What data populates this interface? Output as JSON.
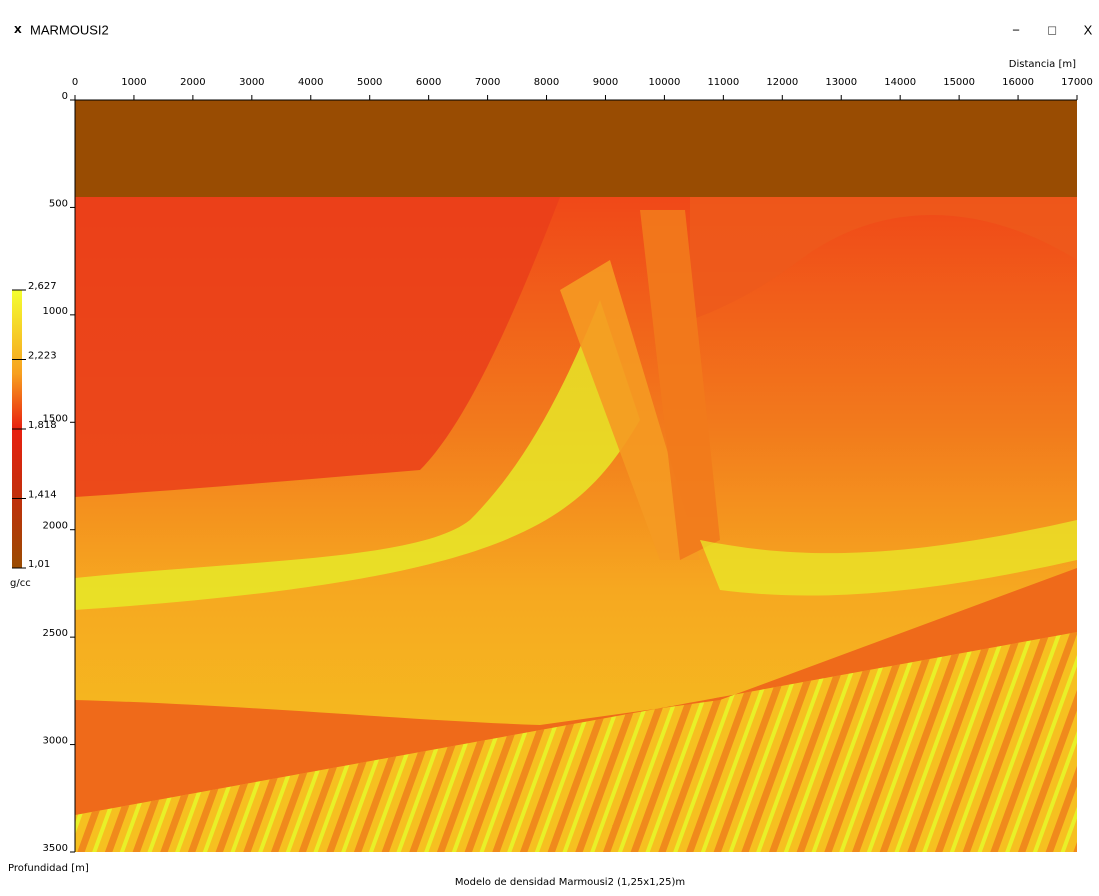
{
  "window": {
    "title": "MARMOUSI2",
    "controls": [
      "−",
      "□",
      "X"
    ]
  },
  "plot": {
    "x_axis_label": "Distancia [m]",
    "xticks": [
      0,
      1000,
      2000,
      3000,
      4000,
      5000,
      6000,
      7000,
      8000,
      9000,
      10000,
      11000,
      12000,
      13000,
      14000,
      15000,
      16000,
      17000
    ],
    "y_axis_label": "Profundidad [m]",
    "yticks": [
      0,
      500,
      1000,
      1500,
      2000,
      2500,
      3000,
      3500
    ],
    "caption": "Modelo de densidad Marmousi2 (1,25x1,25)m"
  },
  "colorbar": {
    "ticks": [
      "2,627",
      "2,223",
      "1,818",
      "1,414",
      "1,01"
    ],
    "unit": "g/cc"
  }
}
